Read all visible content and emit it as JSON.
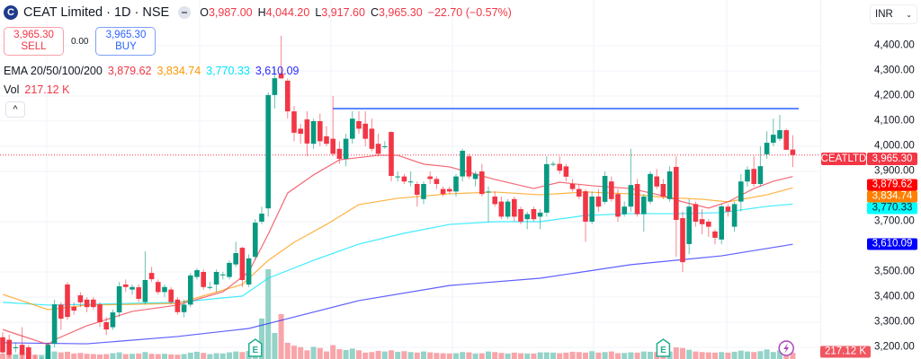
{
  "header": {
    "logo_letter": "C",
    "title": "CEAT Limited · 1D · NSE",
    "open_label": "O",
    "open": "3,987.00",
    "high_label": "H",
    "high": "4,044.20",
    "low_label": "L",
    "low": "3,917.60",
    "close_label": "C",
    "close": "3,965.30",
    "change": "−22.70 (−0.57%)"
  },
  "trade": {
    "sell_price": "3,965.30",
    "sell_label": "SELL",
    "spread": "0.00",
    "buy_price": "3,965.30",
    "buy_label": "BUY"
  },
  "ema_legend": {
    "label": "EMA 20/50/100/200",
    "v20": "3,879.62",
    "v50": "3,834.74",
    "v100": "3,770.33",
    "v200": "3,610.09"
  },
  "vol_legend": {
    "label": "Vol",
    "value": "217.12 K"
  },
  "collapse_icon": "chevron-up-icon",
  "collapse_glyph": "^",
  "axis": {
    "currency": "INR",
    "labels": [
      "4,400.00",
      "4,300.00",
      "4,200.00",
      "4,100.00",
      "4,000.00",
      "3,900.00",
      "3,700.00",
      "3,500.00",
      "3,400.00",
      "3,300.00",
      "3,200.00"
    ]
  },
  "tags": {
    "symbol": "CEATLTD",
    "last": "3,965.30",
    "ema20": "3,879.62",
    "ema50": "3,834.74",
    "ema100": "3,770.33",
    "ema200": "3,610.09",
    "volume": "217.12 K"
  },
  "colors": {
    "up": "#089981",
    "down": "#f23645",
    "ema20": "#f23645",
    "ema50": "#ff9800",
    "ema100": "#00e5ff",
    "ema200": "#2a2aff",
    "hline": "#2962ff",
    "vol_up": "#94d3c8",
    "vol_down": "#f8a5aa"
  },
  "chart_data": {
    "type": "candlestick",
    "symbol": "CEATLTD",
    "interval": "1D",
    "exchange": "NSE",
    "yrange": [
      3150,
      4450
    ],
    "price_ticks": [
      4400,
      4300,
      4200,
      4100,
      4000,
      3900,
      3700,
      3500,
      3400,
      3300,
      3200
    ],
    "horizontal_line": 4150,
    "last_price": 3965.3,
    "earnings_markers": [
      39,
      102
    ],
    "event_marker": 121,
    "ohlc": [
      [
        3240,
        3260,
        3170,
        3180
      ],
      [
        3230,
        3250,
        3160,
        3170
      ],
      [
        3200,
        3220,
        3180,
        3200
      ],
      [
        3210,
        3280,
        3150,
        3170
      ],
      [
        3200,
        3210,
        3130,
        3140
      ],
      [
        3150,
        3170,
        3120,
        3130
      ],
      [
        3130,
        3160,
        3110,
        3140
      ],
      [
        3140,
        3220,
        3130,
        3210
      ],
      [
        3214,
        3390,
        3200,
        3371
      ],
      [
        3370,
        3380,
        3270,
        3314
      ],
      [
        3450,
        3460,
        3310,
        3321
      ],
      [
        3361,
        3380,
        3330,
        3346
      ],
      [
        3407,
        3420,
        3360,
        3379
      ],
      [
        3390,
        3400,
        3340,
        3360
      ],
      [
        3390,
        3400,
        3350,
        3360
      ],
      [
        3371,
        3380,
        3280,
        3300
      ],
      [
        3300,
        3320,
        3250,
        3271
      ],
      [
        3280,
        3350,
        3270,
        3339
      ],
      [
        3339,
        3460,
        3320,
        3443
      ],
      [
        3450,
        3470,
        3420,
        3440
      ],
      [
        3430,
        3450,
        3410,
        3440
      ],
      [
        3439,
        3450,
        3380,
        3393
      ],
      [
        3380,
        3582,
        3370,
        3468
      ],
      [
        3496,
        3520,
        3460,
        3471
      ],
      [
        3460,
        3470,
        3410,
        3420
      ],
      [
        3420,
        3450,
        3400,
        3440
      ],
      [
        3430,
        3440,
        3370,
        3380
      ],
      [
        3390,
        3400,
        3330,
        3340
      ],
      [
        3340,
        3390,
        3320,
        3370
      ],
      [
        3370,
        3495,
        3360,
        3486
      ],
      [
        3480,
        3515,
        3470,
        3507
      ],
      [
        3500,
        3510,
        3430,
        3440
      ],
      [
        3440,
        3460,
        3430,
        3440
      ],
      [
        3450,
        3510,
        3420,
        3500
      ],
      [
        3490,
        3500,
        3470,
        3490
      ],
      [
        3480,
        3545,
        3470,
        3536
      ],
      [
        3530,
        3620,
        3520,
        3575
      ],
      [
        3596,
        3600,
        3440,
        3468
      ],
      [
        3450,
        3570,
        3440,
        3554
      ],
      [
        3560,
        3710,
        3550,
        3696
      ],
      [
        3700,
        3760,
        3690,
        3732
      ],
      [
        3753,
        4215,
        3720,
        4204
      ],
      [
        4204,
        4310,
        4150,
        4271
      ],
      [
        4290,
        4440,
        4270,
        4270
      ],
      [
        4261,
        4270,
        4110,
        4139
      ],
      [
        4139,
        4160,
        4020,
        4054
      ],
      [
        4070,
        4090,
        4010,
        4050
      ],
      [
        4107,
        4140,
        3960,
        4011
      ],
      [
        4010,
        4110,
        3990,
        4100
      ],
      [
        4100,
        4130,
        4000,
        4020
      ],
      [
        4040,
        4080,
        4000,
        4010
      ],
      [
        4030,
        4200,
        3960,
        3970
      ],
      [
        3990,
        4020,
        3930,
        3950
      ],
      [
        3950,
        4050,
        3920,
        4030
      ],
      [
        4030,
        4140,
        4010,
        4110
      ],
      [
        4100,
        4140,
        4050,
        4070
      ],
      [
        4090,
        4140,
        4000,
        4030
      ],
      [
        4070,
        4110,
        3980,
        3990
      ],
      [
        4010,
        4050,
        3960,
        3970
      ],
      [
        4000,
        4020,
        3990,
        4000
      ],
      [
        4057,
        4060,
        3860,
        3882
      ],
      [
        3880,
        3900,
        3860,
        3880
      ],
      [
        3880,
        3890,
        3850,
        3860
      ],
      [
        3860,
        3900,
        3840,
        3860
      ],
      [
        3850,
        3860,
        3760,
        3807
      ],
      [
        3790,
        3860,
        3770,
        3850
      ],
      [
        3880,
        3900,
        3850,
        3870
      ],
      [
        3870,
        3880,
        3830,
        3850
      ],
      [
        3830,
        3840,
        3800,
        3810
      ],
      [
        3830,
        3840,
        3810,
        3820
      ],
      [
        3820,
        3890,
        3800,
        3880
      ],
      [
        3880,
        3990,
        3860,
        3982
      ],
      [
        3960,
        3970,
        3870,
        3880
      ],
      [
        3870,
        3900,
        3840,
        3890
      ],
      [
        3900,
        3930,
        3800,
        3810
      ],
      [
        3820,
        3840,
        3700,
        3820
      ],
      [
        3800,
        3820,
        3760,
        3770
      ],
      [
        3780,
        3800,
        3710,
        3720
      ],
      [
        3720,
        3790,
        3710,
        3780
      ],
      [
        3790,
        3800,
        3700,
        3720
      ],
      [
        3750,
        3760,
        3690,
        3700
      ],
      [
        3710,
        3740,
        3670,
        3730
      ],
      [
        3750,
        3760,
        3700,
        3710
      ],
      [
        3720,
        3750,
        3670,
        3736
      ],
      [
        3736,
        3960,
        3720,
        3929
      ],
      [
        3930,
        3940,
        3920,
        3930
      ],
      [
        3930,
        3960,
        3890,
        3903
      ],
      [
        3920,
        3930,
        3860,
        3879
      ],
      [
        3850,
        3870,
        3820,
        3830
      ],
      [
        3830,
        3850,
        3790,
        3800
      ],
      [
        3821,
        3830,
        3620,
        3700
      ],
      [
        3700,
        3820,
        3690,
        3800
      ],
      [
        3800,
        3830,
        3740,
        3760
      ],
      [
        3779,
        3900,
        3770,
        3882
      ],
      [
        3860,
        3880,
        3780,
        3790
      ],
      [
        3810,
        3830,
        3700,
        3720
      ],
      [
        3730,
        3780,
        3720,
        3760
      ],
      [
        3760,
        3990,
        3740,
        3846
      ],
      [
        3850,
        3870,
        3720,
        3730
      ],
      [
        3730,
        3810,
        3660,
        3800
      ],
      [
        3780,
        3900,
        3770,
        3890
      ],
      [
        3880,
        3910,
        3830,
        3840
      ],
      [
        3850,
        3870,
        3790,
        3800
      ],
      [
        3790,
        3920,
        3780,
        3900
      ],
      [
        3918,
        3960,
        3560,
        3707
      ],
      [
        3714,
        3740,
        3500,
        3539
      ],
      [
        3611,
        3790,
        3570,
        3760
      ],
      [
        3770,
        3780,
        3680,
        3700
      ],
      [
        3710,
        3750,
        3650,
        3690
      ],
      [
        3700,
        3710,
        3640,
        3680
      ],
      [
        3661,
        3670,
        3610,
        3636
      ],
      [
        3629,
        3770,
        3610,
        3761
      ],
      [
        3760,
        3770,
        3720,
        3740
      ],
      [
        3680,
        3780,
        3660,
        3770
      ],
      [
        3780,
        3890,
        3740,
        3860
      ],
      [
        3860,
        3920,
        3840,
        3907
      ],
      [
        3910,
        3960,
        3840,
        3850
      ],
      [
        3850,
        4000,
        3840,
        3921
      ],
      [
        3968,
        4060,
        3950,
        4014
      ],
      [
        4014,
        4110,
        4000,
        4046
      ],
      [
        4030,
        4125,
        4020,
        4064
      ],
      [
        4064,
        4070,
        3990,
        3986
      ],
      [
        3987,
        4044.2,
        3917.6,
        3965.3
      ]
    ],
    "volume_k": [
      180,
      220,
      160,
      200,
      230,
      150,
      140,
      210,
      260,
      230,
      250,
      190,
      210,
      180,
      170,
      160,
      170,
      200,
      230,
      170,
      180,
      190,
      240,
      180,
      170,
      180,
      160,
      150,
      170,
      220,
      250,
      210,
      170,
      200,
      190,
      230,
      260,
      240,
      280,
      320,
      1400,
      3100,
      900,
      1550,
      560,
      460,
      410,
      300,
      420,
      380,
      260,
      480,
      340,
      310,
      360,
      300,
      220,
      240,
      280,
      260,
      300,
      250,
      270,
      240,
      220,
      260,
      230,
      210,
      200,
      190,
      200,
      240,
      230,
      190,
      200,
      260,
      240,
      210,
      190,
      220,
      200,
      190,
      190,
      230,
      230,
      220,
      200,
      220,
      250,
      240,
      220,
      270,
      220,
      240,
      260,
      200,
      210,
      230,
      220,
      260,
      250,
      240,
      300,
      260,
      400,
      380,
      320,
      260,
      240,
      230,
      220,
      240,
      220,
      250,
      290,
      260,
      240,
      270,
      330,
      240,
      300,
      250,
      217.12
    ],
    "ema20": [
      [
        0,
        3271
      ],
      [
        7,
        3211
      ],
      [
        8,
        3230
      ],
      [
        13,
        3286
      ],
      [
        20,
        3343
      ],
      [
        27,
        3368
      ],
      [
        34,
        3421
      ],
      [
        38,
        3500
      ],
      [
        41,
        3650
      ],
      [
        44,
        3814
      ],
      [
        48,
        3886
      ],
      [
        52,
        3946
      ],
      [
        58,
        3964
      ],
      [
        61,
        3964
      ],
      [
        65,
        3929
      ],
      [
        69,
        3918
      ],
      [
        76,
        3868
      ],
      [
        82,
        3832
      ],
      [
        86,
        3857
      ],
      [
        91,
        3843
      ],
      [
        97,
        3832
      ],
      [
        102,
        3803
      ],
      [
        105,
        3779
      ],
      [
        109,
        3754
      ],
      [
        112,
        3779
      ],
      [
        116,
        3832
      ],
      [
        119,
        3861
      ],
      [
        122,
        3879.62
      ]
    ],
    "ema50": [
      [
        0,
        3411
      ],
      [
        7,
        3350
      ],
      [
        13,
        3368
      ],
      [
        20,
        3371
      ],
      [
        27,
        3375
      ],
      [
        37,
        3450
      ],
      [
        41,
        3546
      ],
      [
        45,
        3618
      ],
      [
        50,
        3689
      ],
      [
        55,
        3768
      ],
      [
        61,
        3793
      ],
      [
        69,
        3811
      ],
      [
        76,
        3818
      ],
      [
        83,
        3807
      ],
      [
        90,
        3818
      ],
      [
        97,
        3811
      ],
      [
        102,
        3797
      ],
      [
        108,
        3789
      ],
      [
        112,
        3779
      ],
      [
        118,
        3807
      ],
      [
        122,
        3834.74
      ]
    ],
    "ema100": [
      [
        0,
        3379
      ],
      [
        7,
        3368
      ],
      [
        13,
        3371
      ],
      [
        27,
        3379
      ],
      [
        37,
        3404
      ],
      [
        41,
        3475
      ],
      [
        48,
        3546
      ],
      [
        55,
        3611
      ],
      [
        62,
        3654
      ],
      [
        69,
        3689
      ],
      [
        76,
        3700
      ],
      [
        83,
        3700
      ],
      [
        90,
        3725
      ],
      [
        97,
        3732
      ],
      [
        104,
        3732
      ],
      [
        111,
        3736
      ],
      [
        118,
        3761
      ],
      [
        122,
        3770.33
      ]
    ],
    "ema200": [
      [
        0,
        3218
      ],
      [
        13,
        3214
      ],
      [
        27,
        3243
      ],
      [
        38,
        3275
      ],
      [
        44,
        3314
      ],
      [
        55,
        3386
      ],
      [
        69,
        3446
      ],
      [
        83,
        3475
      ],
      [
        97,
        3529
      ],
      [
        111,
        3564
      ],
      [
        122,
        3610.09
      ]
    ]
  }
}
